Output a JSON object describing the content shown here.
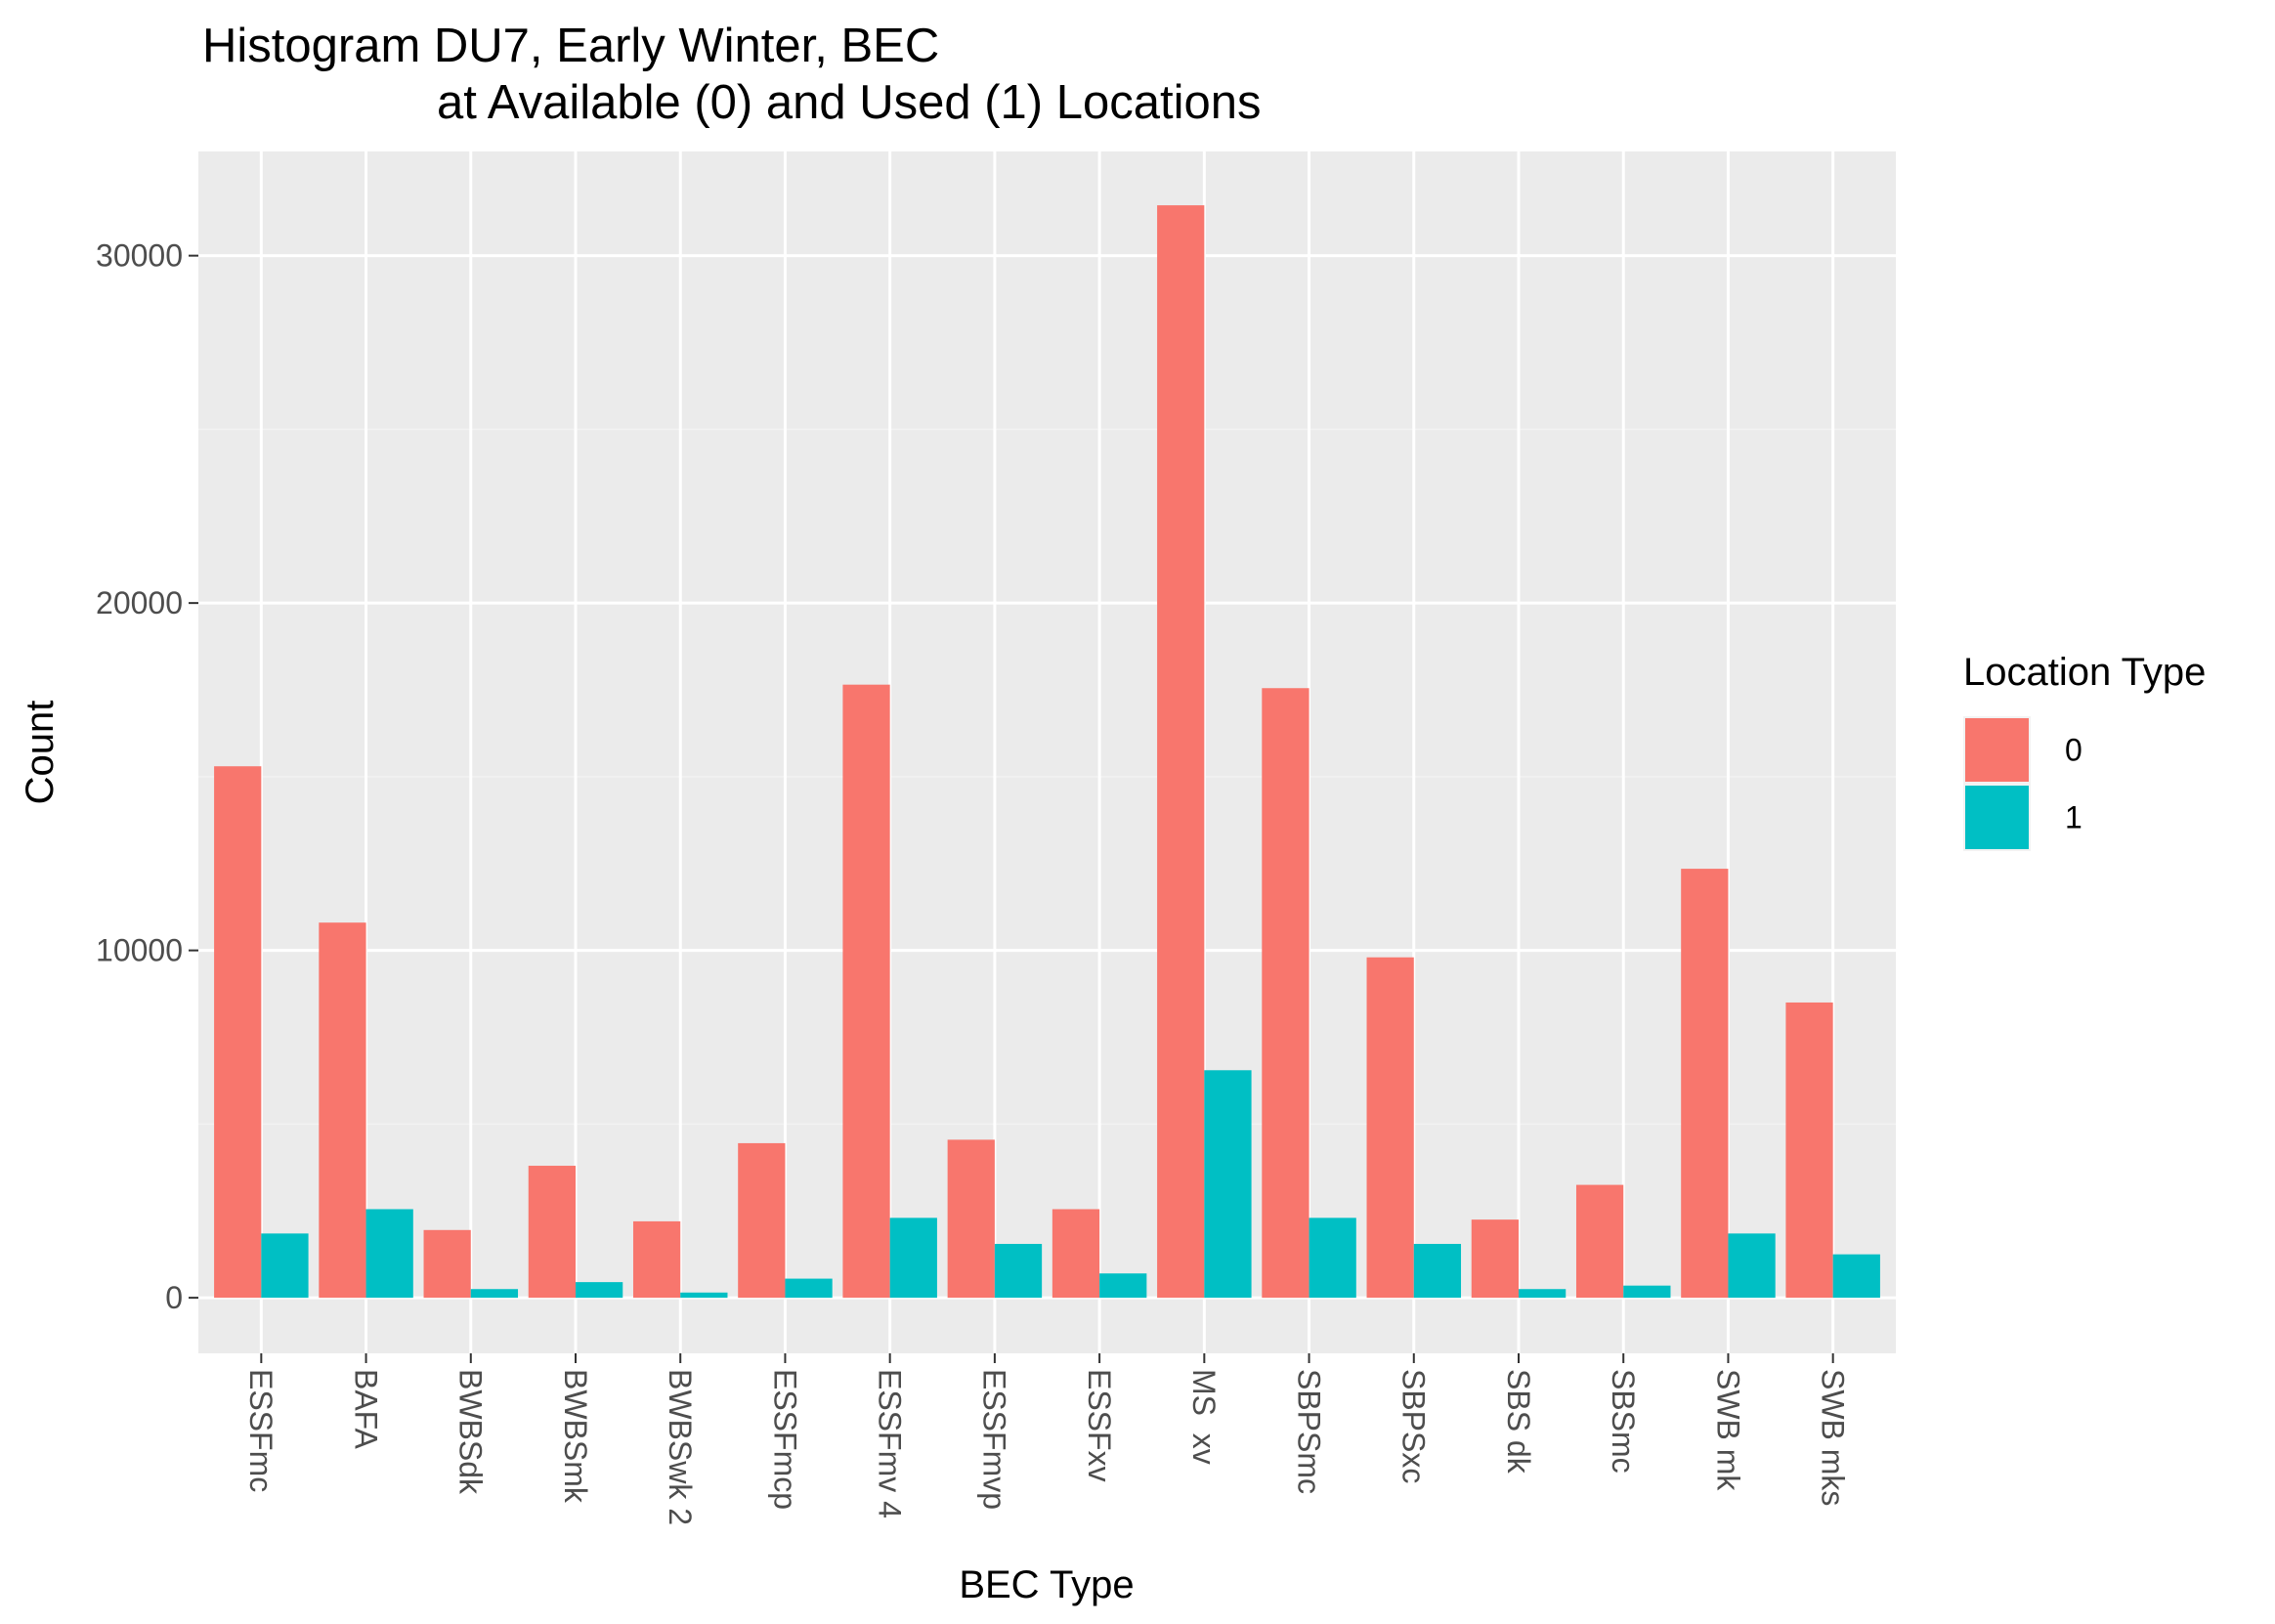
{
  "chart_data": {
    "type": "bar",
    "title_line1": "Histogram DU7, Early Winter, BEC",
    "title_line2": "at Available (0) and Used (1) Locations",
    "xlabel": "BEC Type",
    "ylabel": "Count",
    "ylim": [
      -1600,
      33000
    ],
    "yticks": [
      0,
      10000,
      20000,
      30000
    ],
    "ytick_labels": [
      "0",
      "10000",
      "20000",
      "30000"
    ],
    "grid": true,
    "legend_position": "right",
    "legend_title": "Location Type",
    "categories": [
      "ESSFmc",
      "BAFA",
      "BWBSdk",
      "BWBSmk",
      "BWBSwk 2",
      "ESSFmcp",
      "ESSFmv 4",
      "ESSFmvp",
      "ESSFxv",
      "MS  xv",
      "SBPSmc",
      "SBPSxc",
      "SBS dk",
      "SBSmc",
      "SWB mk",
      "SWB mks"
    ],
    "series": [
      {
        "name": "0",
        "color": "#F8766D",
        "values": [
          15300,
          10800,
          1950,
          3800,
          2200,
          4450,
          17650,
          4550,
          2550,
          31450,
          17550,
          9800,
          2250,
          3250,
          12350,
          8500
        ]
      },
      {
        "name": "1",
        "color": "#00BFC4",
        "values": [
          1850,
          2550,
          250,
          450,
          150,
          550,
          2300,
          1550,
          700,
          6550,
          2300,
          1550,
          250,
          350,
          1850,
          1250
        ]
      }
    ]
  },
  "colors": {
    "panel_background": "#EBEBEB",
    "grid_major": "#FFFFFF",
    "grid_minor": "#F2F2F2",
    "tick_text": "#4D4D4D",
    "tick_mark": "#333333"
  }
}
